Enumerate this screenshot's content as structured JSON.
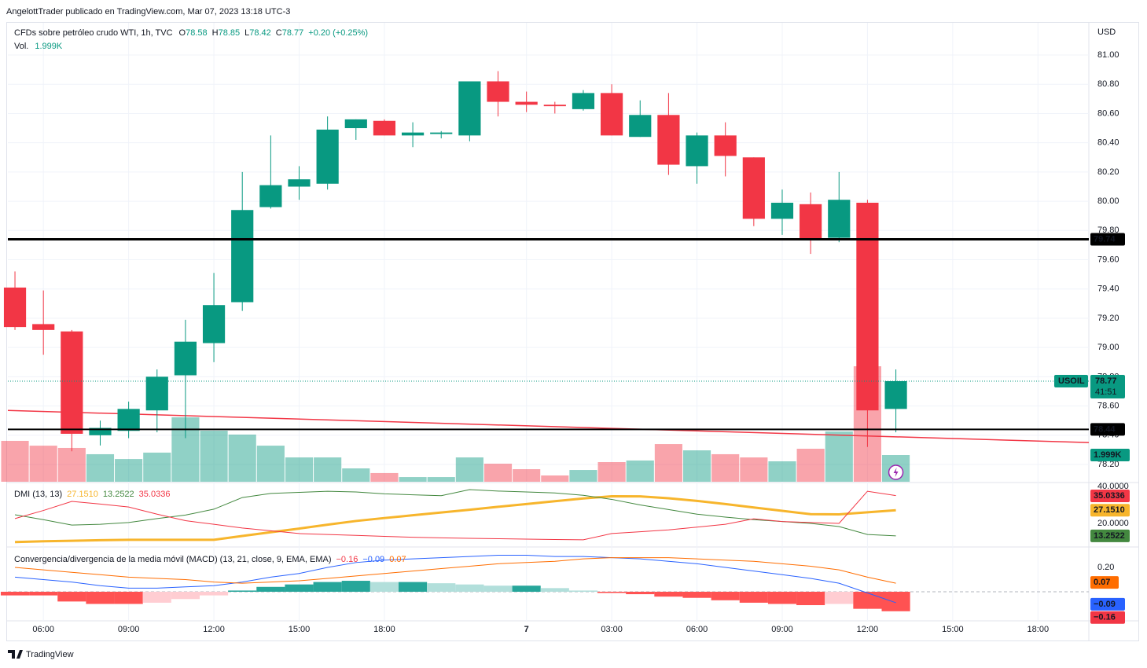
{
  "header": {
    "author": "AngelottTrader publicado en TradingView.com, Mar 07, 2023 13:18 UTC-3",
    "symbol": "CFDs sobre petróleo crudo WTI, 1h, TVC",
    "ohlc": [
      "O",
      "78.58",
      "H",
      "78.85",
      "L",
      "78.42",
      "C",
      "78.77",
      "+0.20 (+0.25%)"
    ],
    "volume_label": "Vol.",
    "volume_value": "1.999K",
    "currency": "USD",
    "ticker": "USOIL",
    "countdown": "41:51",
    "footer": "TradingView"
  },
  "chart_data": [
    {
      "type": "candlestick",
      "up_color": "#089981",
      "down_color": "#f23645",
      "open": [
        79.41,
        79.16,
        79.11,
        78.4,
        78.43,
        78.57,
        78.81,
        79.03,
        79.31,
        79.96,
        80.1,
        80.12,
        80.5,
        80.55,
        80.45,
        80.46,
        80.45,
        80.82,
        80.68,
        80.66,
        80.63,
        80.74,
        80.44,
        80.59,
        80.24,
        80.45,
        80.3,
        79.88,
        79.98,
        79.75,
        79.99,
        78.58
      ],
      "high": [
        79.52,
        79.39,
        79.12,
        78.5,
        78.63,
        78.85,
        79.19,
        79.51,
        80.2,
        80.45,
        80.24,
        80.58,
        80.56,
        80.56,
        80.54,
        80.48,
        80.82,
        80.89,
        80.75,
        80.68,
        80.76,
        80.8,
        80.69,
        80.74,
        80.47,
        80.54,
        80.3,
        80.08,
        80.06,
        80.2,
        80.01,
        78.85
      ],
      "low": [
        79.12,
        78.95,
        78.29,
        78.33,
        78.38,
        78.42,
        78.38,
        78.9,
        79.25,
        79.95,
        80.01,
        80.08,
        80.42,
        80.45,
        80.37,
        80.43,
        80.41,
        80.58,
        80.61,
        80.6,
        80.62,
        80.45,
        80.44,
        80.18,
        80.12,
        80.17,
        79.83,
        79.77,
        79.64,
        79.72,
        78.32,
        78.42
      ],
      "close": [
        79.14,
        79.12,
        78.41,
        78.45,
        78.58,
        78.8,
        79.04,
        79.29,
        79.94,
        80.11,
        80.15,
        80.49,
        80.56,
        80.45,
        80.47,
        80.47,
        80.82,
        80.68,
        80.66,
        80.65,
        80.74,
        80.45,
        80.59,
        80.25,
        80.45,
        80.31,
        79.88,
        79.99,
        79.74,
        80.01,
        78.57,
        78.77
      ],
      "xlim": [
        -0.25,
        37.79
      ],
      "xticks": [
        {
          "value": 1,
          "label": "06:00"
        },
        {
          "value": 4,
          "label": "09:00"
        },
        {
          "value": 7,
          "label": "12:00"
        },
        {
          "value": 10,
          "label": "15:00"
        },
        {
          "value": 13,
          "label": "18:00"
        },
        {
          "value": 18,
          "label": "7"
        },
        {
          "value": 21,
          "label": "03:00"
        },
        {
          "value": 24,
          "label": "06:00"
        },
        {
          "value": 27,
          "label": "09:00"
        },
        {
          "value": 30,
          "label": "12:00"
        },
        {
          "value": 33,
          "label": "15:00"
        },
        {
          "value": 36,
          "label": "18:00"
        }
      ],
      "ylim": [
        78.082,
        81.215
      ],
      "yticks": [
        {
          "value": 81,
          "label": "81.00"
        },
        {
          "value": 80.8,
          "label": "80.80"
        },
        {
          "value": 80.6,
          "label": "80.60"
        },
        {
          "value": 80.4,
          "label": "80.40"
        },
        {
          "value": 80.2,
          "label": "80.20"
        },
        {
          "value": 80,
          "label": "80.00"
        },
        {
          "value": 79.8,
          "label": "79.80"
        },
        {
          "value": 79.6,
          "label": "79.60"
        },
        {
          "value": 79.4,
          "label": "79.40"
        },
        {
          "value": 79.2,
          "label": "79.20"
        },
        {
          "value": 79,
          "label": "79.00"
        },
        {
          "value": 78.8,
          "label": "78.80"
        },
        {
          "value": 78.6,
          "label": "78.60"
        },
        {
          "value": 78.4,
          "label": "78.40"
        },
        {
          "value": 78.2,
          "label": "78.20"
        }
      ],
      "grid": true,
      "hlines": [
        {
          "value": 79.74,
          "color": "#000000",
          "width": 3
        },
        {
          "value": 78.44,
          "color": "#000000",
          "width": 2
        }
      ],
      "trendline": {
        "x": [
          -0.25,
          37.79
        ],
        "y": [
          78.57,
          78.35
        ],
        "color": "#f23645"
      }
    },
    {
      "type": "volume",
      "values": [
        3060,
        2700,
        2530,
        2060,
        1700,
        2180,
        4820,
        3820,
        3530,
        2700,
        1820,
        1820,
        1000,
        650,
        350,
        350,
        1820,
        1350,
        940,
        470,
        880,
        1470,
        1590,
        2820,
        2350,
        2060,
        1820,
        1530,
        2470,
        3760,
        8640,
        1999
      ],
      "value_labels": [
        null,
        null,
        null,
        null,
        null,
        null,
        null,
        null,
        null,
        null,
        null,
        null,
        null,
        null,
        null,
        null,
        null,
        null,
        null,
        null,
        null,
        null,
        null,
        null,
        null,
        null,
        null,
        null,
        null,
        null,
        null,
        "1.999K"
      ],
      "ylim": [
        0,
        11760
      ],
      "up_color": "#089981",
      "down_color": "#f23645"
    },
    {
      "type": "line",
      "title": "DMI (13, 13)",
      "ylim": [
        7.66,
        41.7
      ],
      "yticks": [
        {
          "value": 40,
          "label": "40.0000"
        },
        {
          "value": 20,
          "label": "20.0000"
        }
      ],
      "series": [
        {
          "name": "ADX",
          "color": "#f7b52c",
          "width": 3,
          "values": [
            9.9,
            10.3,
            10.6,
            10.9,
            11.1,
            11.1,
            11.1,
            11.1,
            13.2,
            15.2,
            17.2,
            19.3,
            21.3,
            22.9,
            24.4,
            25.9,
            27.4,
            29.0,
            30.5,
            32.0,
            33.5,
            34.7,
            34.6,
            33.6,
            32.2,
            30.5,
            28.6,
            26.8,
            25.0,
            24.9,
            26.0,
            27.151
          ],
          "value_labels": [
            null,
            null,
            null,
            null,
            null,
            null,
            null,
            null,
            null,
            null,
            null,
            null,
            null,
            null,
            null,
            null,
            null,
            null,
            null,
            null,
            null,
            null,
            null,
            null,
            null,
            null,
            null,
            null,
            null,
            null,
            null,
            "27.1510"
          ]
        },
        {
          "name": "+DI",
          "color": "#43883f",
          "width": 1,
          "values": [
            24.7,
            22.0,
            19.1,
            19.5,
            20.5,
            22.6,
            24.5,
            27.7,
            34.0,
            36.2,
            36.8,
            37.4,
            37.0,
            36.0,
            35.5,
            35.0,
            38.3,
            37.5,
            37.0,
            36.5,
            35.2,
            33.0,
            30.0,
            27.5,
            25.0,
            23.4,
            22.0,
            21.0,
            20.0,
            18.3,
            14.0,
            13.2522
          ]
        },
        {
          "name": "-DI",
          "color": "#f23645",
          "width": 1,
          "values": [
            22.6,
            27.0,
            31.9,
            30.5,
            28.9,
            25.0,
            21.5,
            19.5,
            17.5,
            16.0,
            14.5,
            14.0,
            13.5,
            13.0,
            12.5,
            12.2,
            11.9,
            11.7,
            11.5,
            11.3,
            11.1,
            14.5,
            15.5,
            16.5,
            18.0,
            19.5,
            22.5,
            21.0,
            20.5,
            20.0,
            37.4,
            35.0336
          ]
        }
      ]
    },
    {
      "type": "macd",
      "title": "Convergencia/divergencia de la media móvil (MACD) (13, 21, close, 9, EMA, EMA)",
      "ylim": [
        -0.239,
        0.355
      ],
      "yticks": [
        {
          "value": 0.2,
          "label": "0.20"
        }
      ],
      "hist_colors": [
        "#26a69a",
        "#b2dfdb",
        "#ff5252",
        "#ffcdd2"
      ],
      "histogram": {
        "name": "Histograma",
        "values": [
          -0.03,
          -0.03,
          -0.08,
          -0.1,
          -0.1,
          -0.09,
          -0.06,
          -0.03,
          0.01,
          0.04,
          0.06,
          0.08,
          0.09,
          0.08,
          0.08,
          0.07,
          0.06,
          0.05,
          0.05,
          0.03,
          0.01,
          -0.01,
          -0.02,
          -0.04,
          -0.05,
          -0.07,
          -0.09,
          -0.1,
          -0.11,
          -0.1,
          -0.14,
          -0.16
        ],
        "value_labels": [
          null,
          null,
          null,
          null,
          null,
          null,
          null,
          null,
          null,
          null,
          null,
          null,
          null,
          null,
          null,
          null,
          null,
          null,
          null,
          null,
          null,
          null,
          null,
          null,
          null,
          null,
          null,
          null,
          null,
          null,
          null,
          "−0.16"
        ],
        "color": "#f23645"
      },
      "series": [
        {
          "name": "MACD",
          "color": "#2962ff",
          "values": [
            0.12,
            0.1,
            0.08,
            0.05,
            0.03,
            0.03,
            0.04,
            0.05,
            0.08,
            0.12,
            0.15,
            0.2,
            0.24,
            0.26,
            0.27,
            0.28,
            0.29,
            0.3,
            0.3,
            0.29,
            0.29,
            0.28,
            0.27,
            0.25,
            0.23,
            0.2,
            0.17,
            0.14,
            0.11,
            0.07,
            -0.01,
            -0.09
          ],
          "value_labels": [
            null,
            null,
            null,
            null,
            null,
            null,
            null,
            null,
            null,
            null,
            null,
            null,
            null,
            null,
            null,
            null,
            null,
            null,
            null,
            null,
            null,
            null,
            null,
            null,
            null,
            null,
            null,
            null,
            null,
            null,
            null,
            "−0.09"
          ]
        },
        {
          "name": "Signal",
          "color": "#ff6d00",
          "values": [
            0.2,
            0.18,
            0.16,
            0.14,
            0.12,
            0.11,
            0.1,
            0.08,
            0.07,
            0.08,
            0.09,
            0.11,
            0.13,
            0.15,
            0.17,
            0.19,
            0.21,
            0.23,
            0.24,
            0.25,
            0.27,
            0.28,
            0.28,
            0.28,
            0.27,
            0.26,
            0.25,
            0.23,
            0.21,
            0.18,
            0.12,
            0.07
          ]
        }
      ]
    }
  ]
}
